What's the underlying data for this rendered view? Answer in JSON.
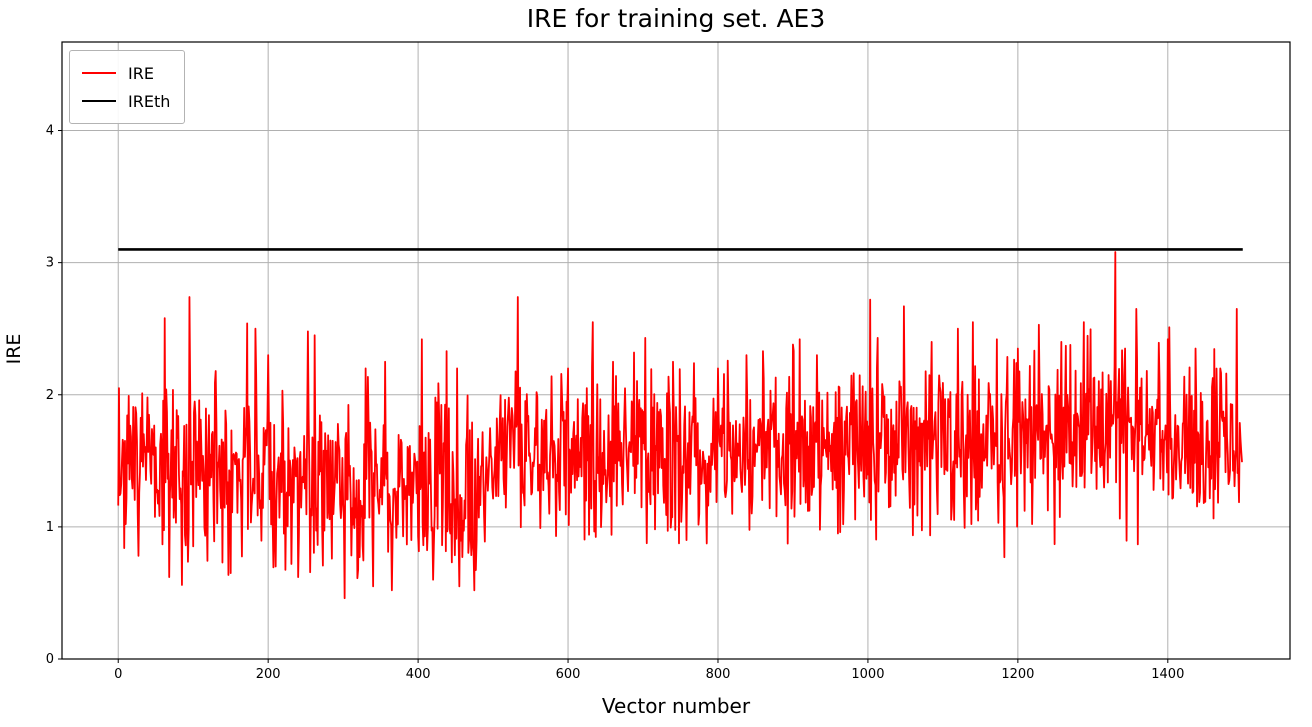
{
  "chart_data": {
    "type": "line",
    "title": "IRE for training set. AE3",
    "xlabel": "Vector number",
    "ylabel": "IRE",
    "xlim": [
      -75,
      1563
    ],
    "ylim": [
      0,
      4.67
    ],
    "xticks": [
      0,
      200,
      400,
      600,
      800,
      1000,
      1200,
      1400
    ],
    "yticks": [
      0,
      1,
      2,
      3,
      4
    ],
    "grid": true,
    "grid_color": "#b0b0b0",
    "spine_color": "#000000",
    "background": "#ffffff",
    "legend": {
      "position": "upper-left",
      "entries": [
        {
          "label": "IRE",
          "color": "#ff0000",
          "linewidth": 2
        },
        {
          "label": "IREth",
          "color": "#000000",
          "linewidth": 2.5
        }
      ]
    },
    "series": [
      {
        "name": "IRE",
        "color": "#ff0000",
        "kind": "noisy",
        "n": 1500,
        "linewidth": 1.8,
        "seed": 7,
        "noise_factor": 0.62,
        "extra_up_prob": 0.035,
        "extra_up_max": 0.55,
        "extra_down_prob": 0.035,
        "extra_down_max": 0.45,
        "clip_max": 2.78,
        "mean_profile": [
          [
            0,
            1.44
          ],
          [
            290,
            1.4
          ],
          [
            310,
            1.3
          ],
          [
            480,
            1.28
          ],
          [
            510,
            1.58
          ],
          [
            1000,
            1.62
          ],
          [
            1250,
            1.7
          ],
          [
            1500,
            1.67
          ]
        ],
        "clip_min_profile": [
          [
            0,
            0.56
          ],
          [
            250,
            0.56
          ],
          [
            300,
            0.45
          ],
          [
            490,
            0.5
          ],
          [
            520,
            0.88
          ],
          [
            1500,
            0.86
          ]
        ],
        "spikes": [
          [
            1,
            2.05
          ],
          [
            62,
            2.58
          ],
          [
            68,
            0.62
          ],
          [
            95,
            2.74
          ],
          [
            130,
            2.18
          ],
          [
            150,
            0.65
          ],
          [
            172,
            2.54
          ],
          [
            183,
            2.5
          ],
          [
            200,
            2.3
          ],
          [
            210,
            0.7
          ],
          [
            240,
            0.62
          ],
          [
            253,
            2.48
          ],
          [
            262,
            2.45
          ],
          [
            302,
            0.46
          ],
          [
            330,
            2.2
          ],
          [
            340,
            0.55
          ],
          [
            356,
            2.25
          ],
          [
            365,
            0.52
          ],
          [
            405,
            2.42
          ],
          [
            420,
            0.6
          ],
          [
            438,
            2.33
          ],
          [
            452,
            2.2
          ],
          [
            455,
            0.55
          ],
          [
            475,
            0.52
          ],
          [
            533,
            2.74
          ],
          [
            558,
            2.02
          ],
          [
            600,
            2.2
          ],
          [
            633,
            2.55
          ],
          [
            660,
            2.25
          ],
          [
            688,
            2.32
          ],
          [
            703,
            2.43
          ],
          [
            740,
            2.25
          ],
          [
            758,
            0.9
          ],
          [
            800,
            2.2
          ],
          [
            838,
            2.3
          ],
          [
            860,
            2.33
          ],
          [
            900,
            2.38
          ],
          [
            932,
            2.3
          ],
          [
            960,
            0.95
          ],
          [
            1003,
            2.72
          ],
          [
            1048,
            2.67
          ],
          [
            1085,
            2.4
          ],
          [
            1120,
            2.5
          ],
          [
            1140,
            2.55
          ],
          [
            1172,
            2.42
          ],
          [
            1182,
            0.77
          ],
          [
            1200,
            2.35
          ],
          [
            1228,
            2.53
          ],
          [
            1258,
            2.4
          ],
          [
            1288,
            2.55
          ],
          [
            1330,
            3.08
          ],
          [
            1358,
            2.65
          ],
          [
            1400,
            2.42
          ],
          [
            1437,
            2.35
          ],
          [
            1470,
            2.2
          ],
          [
            1492,
            2.65
          ]
        ]
      },
      {
        "name": "IREth",
        "color": "#000000",
        "kind": "constant",
        "value": 3.1,
        "x_start": 0,
        "x_end": 1500,
        "linewidth": 2.6
      }
    ]
  }
}
